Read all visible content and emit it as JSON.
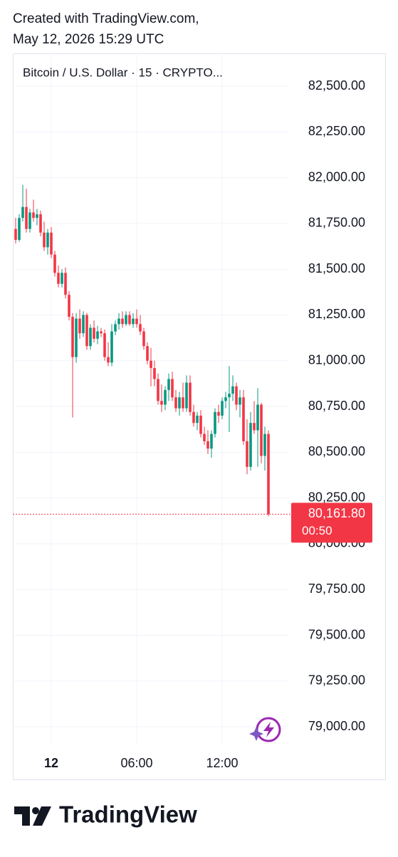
{
  "header": {
    "line1": "Created with TradingView.com,",
    "line2": "May 12, 2026 15:29 UTC"
  },
  "chart_data": {
    "type": "candlestick",
    "title": "Bitcoin / U.S. Dollar · 15 · CRYPTO...",
    "x": [
      -150,
      -135,
      -120,
      -105,
      -90,
      -75,
      -60,
      -45,
      -30,
      -15,
      0,
      15,
      30,
      45,
      60,
      75,
      90,
      105,
      120,
      135,
      150,
      165,
      180,
      195,
      210,
      225,
      240,
      255,
      270,
      285,
      300,
      315,
      330,
      345,
      360,
      375,
      390,
      405,
      420,
      435,
      450,
      465,
      480,
      495,
      510,
      525,
      540,
      555,
      570,
      585,
      600,
      615,
      630,
      645,
      660,
      675,
      690,
      705,
      720,
      735,
      750,
      765,
      780,
      795,
      810,
      825,
      840,
      855,
      870,
      885,
      900,
      915
    ],
    "series": [
      {
        "up_color": "#089981",
        "down_color": "#f23645",
        "open": [
          81720,
          81660,
          81780,
          81840,
          81720,
          81810,
          81780,
          81800,
          81700,
          81620,
          81700,
          81580,
          81480,
          81420,
          81480,
          81360,
          81240,
          81020,
          81230,
          81150,
          81250,
          81080,
          81180,
          81120,
          81160,
          81150,
          81020,
          80990,
          81160,
          81200,
          81230,
          81200,
          81250,
          81200,
          81230,
          81200,
          81160,
          81080,
          81000,
          80960,
          80900,
          80780,
          80760,
          80840,
          80900,
          80800,
          80740,
          80800,
          80740,
          80880,
          80720,
          80660,
          80700,
          80600,
          80560,
          80520,
          80600,
          80720,
          80700,
          80780,
          80800,
          80820,
          80860,
          80760,
          80800,
          80560,
          80420,
          80660,
          80620,
          80760,
          80480,
          80600
        ],
        "high": [
          81780,
          81800,
          81960,
          81940,
          81830,
          81880,
          81830,
          81820,
          81760,
          81720,
          81730,
          81600,
          81520,
          81500,
          81510,
          81380,
          81260,
          81260,
          81280,
          81270,
          81260,
          81200,
          81220,
          81190,
          81180,
          81170,
          81100,
          81200,
          81220,
          81260,
          81270,
          81270,
          81270,
          81260,
          81280,
          81250,
          81180,
          81100,
          81070,
          81000,
          80930,
          80870,
          80860,
          80930,
          80940,
          80840,
          80830,
          80880,
          80920,
          80920,
          80760,
          80720,
          80730,
          80640,
          80620,
          80620,
          80740,
          80760,
          80800,
          80830,
          80970,
          80920,
          80880,
          80840,
          80840,
          80680,
          80720,
          80780,
          80850,
          80770,
          80640,
          80620
        ],
        "low": [
          81640,
          81650,
          81760,
          81700,
          81700,
          81760,
          81740,
          81680,
          81600,
          81580,
          81560,
          81460,
          81400,
          81400,
          81340,
          81220,
          80690,
          80990,
          81120,
          81130,
          81060,
          81060,
          81100,
          81090,
          81130,
          81000,
          80970,
          80970,
          81140,
          81170,
          81180,
          81190,
          81190,
          81180,
          81180,
          81140,
          81060,
          80980,
          80860,
          80860,
          80760,
          80720,
          80730,
          80780,
          80780,
          80720,
          80700,
          80720,
          80720,
          80700,
          80640,
          80620,
          80580,
          80540,
          80490,
          80470,
          80580,
          80660,
          80680,
          80740,
          80610,
          80780,
          80730,
          80690,
          80540,
          80380,
          80400,
          80600,
          80420,
          80440,
          80400,
          80150
        ],
        "close": [
          81660,
          81780,
          81840,
          81720,
          81810,
          81780,
          81800,
          81700,
          81620,
          81700,
          81580,
          81480,
          81420,
          81480,
          81360,
          81240,
          81020,
          81230,
          81150,
          81250,
          81080,
          81180,
          81120,
          81160,
          81150,
          81020,
          80990,
          81160,
          81200,
          81230,
          81200,
          81250,
          81200,
          81230,
          81200,
          81160,
          81080,
          81000,
          80960,
          80900,
          80780,
          80760,
          80840,
          80900,
          80800,
          80740,
          80800,
          80740,
          80880,
          80720,
          80660,
          80700,
          80600,
          80560,
          80520,
          80600,
          80720,
          80700,
          80780,
          80800,
          80820,
          80860,
          80760,
          80800,
          80560,
          80420,
          80660,
          80620,
          80760,
          80480,
          80600,
          80161.8
        ]
      }
    ],
    "last_price": {
      "value": 80161.8,
      "label": "80,161.80"
    },
    "countdown": "00:50",
    "xlim": [
      -162,
      999
    ],
    "xticks": [
      {
        "value": 0,
        "label": "12"
      },
      {
        "value": 360,
        "label": "06:00"
      },
      {
        "value": 720,
        "label": "12:00"
      }
    ],
    "ylim": [
      78907,
      82679
    ],
    "yticks": [
      {
        "value": 79000,
        "label": "79,000.00"
      },
      {
        "value": 79250,
        "label": "79,250.00"
      },
      {
        "value": 79500,
        "label": "79,500.00"
      },
      {
        "value": 79750,
        "label": "79,750.00"
      },
      {
        "value": 80000,
        "label": "80,000.00"
      },
      {
        "value": 80250,
        "label": "80,250.00"
      },
      {
        "value": 80500,
        "label": "80,500.00"
      },
      {
        "value": 80750,
        "label": "80,750.00"
      },
      {
        "value": 81000,
        "label": "81,000.00"
      },
      {
        "value": 81250,
        "label": "81,250.00"
      },
      {
        "value": 81500,
        "label": "81,500.00"
      },
      {
        "value": 81750,
        "label": "81,750.00"
      },
      {
        "value": 82000,
        "label": "82,000.00"
      },
      {
        "value": 82250,
        "label": "82,250.00"
      },
      {
        "value": 82500,
        "label": "82,500.00"
      }
    ],
    "grid": true
  },
  "footer": {
    "brand": "TradingView"
  }
}
